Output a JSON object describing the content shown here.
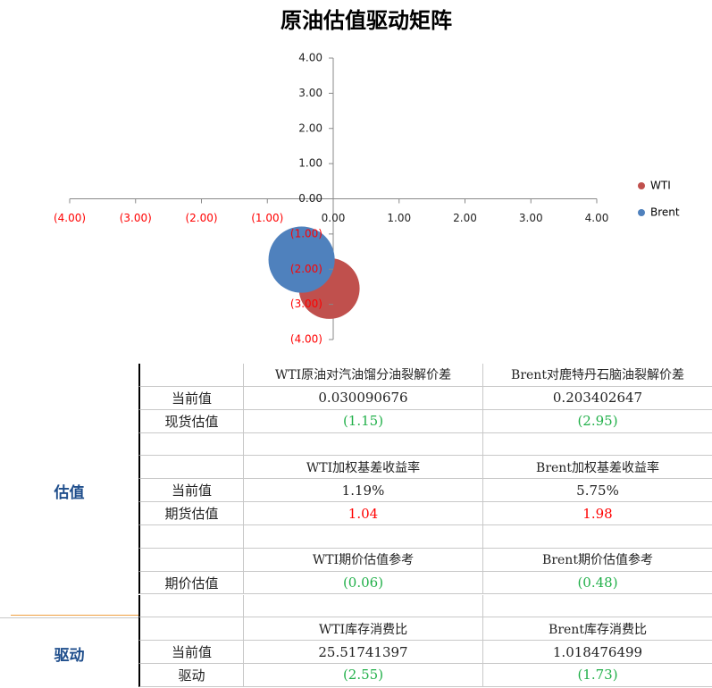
{
  "chart_data": {
    "type": "bubble",
    "title": "原油估值驱动矩阵",
    "series": [
      {
        "name": "WTI",
        "color": "#c0504d",
        "x": [
          -0.06
        ],
        "values": [
          -2.55
        ],
        "sizes": [
          1
        ]
      },
      {
        "name": "Brent",
        "color": "#4f81bd",
        "x": [
          -0.48
        ],
        "values": [
          -1.73
        ],
        "sizes": [
          1.09
        ]
      }
    ],
    "xlim": [
      -4,
      4
    ],
    "ylim": [
      -4,
      4
    ],
    "xticks": [
      {
        "value": -4,
        "label": "(4.00)"
      },
      {
        "value": -3,
        "label": "(3.00)"
      },
      {
        "value": -2,
        "label": "(2.00)"
      },
      {
        "value": -1,
        "label": "(1.00)"
      },
      {
        "value": 0,
        "label": "0.00"
      },
      {
        "value": 1,
        "label": "1.00"
      },
      {
        "value": 2,
        "label": "2.00"
      },
      {
        "value": 3,
        "label": "3.00"
      },
      {
        "value": 4,
        "label": "4.00"
      }
    ],
    "yticks": [
      {
        "value": -4,
        "label": "(4.00)"
      },
      {
        "value": -3,
        "label": "(3.00)"
      },
      {
        "value": -2,
        "label": "(2.00)"
      },
      {
        "value": -1,
        "label": "(1.00)"
      },
      {
        "value": 0,
        "label": "0.00"
      },
      {
        "value": 1,
        "label": "1.00"
      },
      {
        "value": 2,
        "label": "2.00"
      },
      {
        "value": 3,
        "label": "3.00"
      },
      {
        "value": 4,
        "label": "4.00"
      }
    ],
    "negative_label_color": "#ff0000",
    "legend": "right"
  },
  "table": {
    "sections": [
      {
        "label": "估值",
        "rows": [
          {
            "cells": [
              "WTI原油对汽油馏分油裂解价差",
              "Brent对鹿特丹石脑油裂解价差"
            ]
          },
          {
            "label": "当前值",
            "cells": [
              "0.030090676",
              "0.203402647"
            ]
          },
          {
            "label": "现货估值",
            "cells": [
              "(1.15)",
              "(2.95)"
            ],
            "color": "#22b04a"
          },
          {},
          {
            "cells": [
              "WTI加权基差收益率",
              "Brent加权基差收益率"
            ]
          },
          {
            "label": "当前值",
            "cells": [
              "1.19%",
              "5.75%"
            ]
          },
          {
            "label": "期货估值",
            "cells": [
              "1.04",
              "1.98"
            ],
            "color": "#ff0000"
          },
          {},
          {
            "cells": [
              "WTI期价估值参考",
              "Brent期价估值参考"
            ]
          },
          {
            "label": "期价估值",
            "cells": [
              "(0.06)",
              "(0.48)"
            ],
            "color": "#22b04a"
          },
          {}
        ]
      },
      {
        "label": "驱动",
        "rows": [
          {
            "cells": [
              "WTI库存消费比",
              "Brent库存消费比"
            ]
          },
          {
            "label": "当前值",
            "cells": [
              "25.51741397",
              "1.018476499"
            ]
          },
          {
            "label": "驱动",
            "cells": [
              "(2.55)",
              "(1.73)"
            ],
            "color": "#22b04a"
          }
        ]
      }
    ]
  }
}
